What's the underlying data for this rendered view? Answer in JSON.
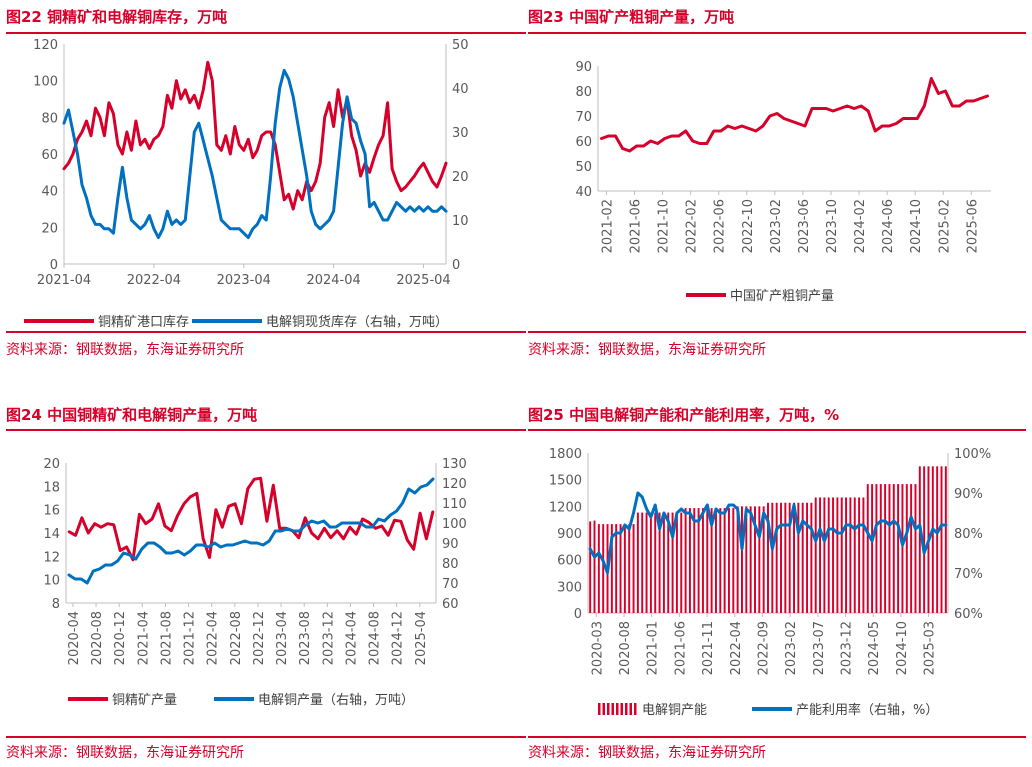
{
  "colors": {
    "red": "#d7002a",
    "blue": "#0070c0",
    "axis": "#bfbfbf",
    "text": "#595959"
  },
  "source_text": "资料来源：钢联数据，东海证券研究所",
  "chart_data": [
    {
      "id": "fig22",
      "type": "line",
      "title": "图22  铜精矿和电解铜库存，万吨",
      "x_ticks": [
        "2021-04",
        "2022-04",
        "2023-04",
        "2024-04",
        "2025-04"
      ],
      "y_left": {
        "min": 0,
        "max": 120,
        "ticks": [
          "0",
          "20",
          "40",
          "60",
          "80",
          "100",
          "120"
        ]
      },
      "y_right": {
        "min": 0,
        "max": 50,
        "ticks": [
          "0",
          "10",
          "20",
          "30",
          "40",
          "50"
        ]
      },
      "legend": [
        "铜精矿港口库存",
        "电解铜现货库存（右轴，万吨）"
      ],
      "series": [
        {
          "name": "铜精矿港口库存",
          "axis": "left",
          "color": "#d7002a",
          "x": [
            0,
            0.05,
            0.1,
            0.15,
            0.2,
            0.25,
            0.3,
            0.35,
            0.4,
            0.45,
            0.5,
            0.55,
            0.6,
            0.65,
            0.7,
            0.75,
            0.8,
            0.85,
            0.9,
            0.95,
            1.0,
            1.05,
            1.1,
            1.15,
            1.2,
            1.25,
            1.3,
            1.35,
            1.4,
            1.45,
            1.5,
            1.55,
            1.6,
            1.65,
            1.7,
            1.75,
            1.8,
            1.85,
            1.9,
            1.95,
            2.0,
            2.05,
            2.1,
            2.15,
            2.2,
            2.25,
            2.3,
            2.35,
            2.4,
            2.45,
            2.5,
            2.55,
            2.6,
            2.65,
            2.7,
            2.75,
            2.8,
            2.85,
            2.9,
            2.95,
            3.0,
            3.05,
            3.1,
            3.15,
            3.2,
            3.25,
            3.3,
            3.35,
            3.4,
            3.45,
            3.5,
            3.55,
            3.6,
            3.65,
            3.7,
            3.75,
            3.8,
            3.85,
            3.9,
            3.95,
            4.0,
            4.05,
            4.1,
            4.15,
            4.2,
            4.25
          ],
          "values": [
            52,
            55,
            60,
            68,
            72,
            78,
            70,
            85,
            80,
            70,
            88,
            82,
            65,
            60,
            72,
            62,
            78,
            65,
            68,
            63,
            68,
            70,
            75,
            92,
            85,
            100,
            90,
            95,
            88,
            92,
            85,
            95,
            110,
            100,
            65,
            62,
            70,
            60,
            75,
            65,
            62,
            68,
            58,
            62,
            70,
            72,
            72,
            65,
            50,
            35,
            38,
            30,
            40,
            35,
            45,
            40,
            45,
            55,
            80,
            88,
            75,
            95,
            80,
            90,
            70,
            62,
            48,
            55,
            50,
            58,
            65,
            70,
            88,
            52,
            45,
            40,
            42,
            45,
            48,
            52,
            55,
            50,
            45,
            42,
            48,
            55
          ]
        },
        {
          "name": "电解铜现货库存",
          "axis": "right",
          "color": "#0070c0",
          "x": [
            0,
            0.05,
            0.1,
            0.15,
            0.2,
            0.25,
            0.3,
            0.35,
            0.4,
            0.45,
            0.5,
            0.55,
            0.6,
            0.65,
            0.7,
            0.75,
            0.8,
            0.85,
            0.9,
            0.95,
            1.0,
            1.05,
            1.1,
            1.15,
            1.2,
            1.25,
            1.3,
            1.35,
            1.4,
            1.45,
            1.5,
            1.55,
            1.6,
            1.65,
            1.7,
            1.75,
            1.8,
            1.85,
            1.9,
            1.95,
            2.0,
            2.05,
            2.1,
            2.15,
            2.2,
            2.25,
            2.3,
            2.35,
            2.4,
            2.45,
            2.5,
            2.55,
            2.6,
            2.65,
            2.7,
            2.75,
            2.8,
            2.85,
            2.9,
            2.95,
            3.0,
            3.05,
            3.1,
            3.15,
            3.2,
            3.25,
            3.3,
            3.35,
            3.4,
            3.45,
            3.5,
            3.55,
            3.6,
            3.65,
            3.7,
            3.75,
            3.8,
            3.85,
            3.9,
            3.95,
            4.0,
            4.05,
            4.1,
            4.15,
            4.2,
            4.25
          ],
          "values": [
            32,
            35,
            30,
            25,
            18,
            15,
            11,
            9,
            9,
            8,
            8,
            7,
            15,
            22,
            15,
            10,
            9,
            8,
            9,
            11,
            8,
            6,
            8,
            12,
            9,
            10,
            9,
            10,
            20,
            30,
            32,
            28,
            24,
            20,
            15,
            10,
            9,
            8,
            8,
            8,
            7,
            6,
            8,
            9,
            11,
            10,
            20,
            32,
            40,
            44,
            42,
            38,
            32,
            26,
            20,
            12,
            9,
            8,
            9,
            10,
            12,
            22,
            32,
            38,
            33,
            32,
            28,
            25,
            13,
            14,
            12,
            10,
            10,
            12,
            14,
            13,
            12,
            13,
            12,
            13,
            12,
            13,
            12,
            12,
            13,
            12
          ]
        }
      ]
    },
    {
      "id": "fig23",
      "type": "line",
      "title": "图23  中国矿产粗铜产量，万吨",
      "x_ticks": [
        "2021-02",
        "2021-06",
        "2021-10",
        "2022-02",
        "2022-06",
        "2022-10",
        "2023-02",
        "2023-06",
        "2023-10",
        "2024-02",
        "2024-06",
        "2024-10",
        "2025-02",
        "2025-06"
      ],
      "y_left": {
        "min": 40,
        "max": 90,
        "ticks": [
          "40",
          "50",
          "60",
          "70",
          "80",
          "90"
        ]
      },
      "legend": [
        "中国矿产粗铜产量"
      ],
      "series": [
        {
          "name": "中国矿产粗铜产量",
          "axis": "left",
          "color": "#d7002a",
          "values": [
            61,
            62,
            62,
            57,
            56,
            58,
            58,
            60,
            59,
            61,
            62,
            62,
            64,
            60,
            59,
            59,
            64,
            64,
            66,
            65,
            66,
            65,
            64,
            66,
            70,
            71,
            69,
            68,
            67,
            66,
            73,
            73,
            73,
            72,
            73,
            74,
            73,
            74,
            72,
            64,
            66,
            66,
            67,
            69,
            69,
            69,
            74,
            85,
            79,
            80,
            74,
            74,
            76,
            76,
            77,
            78
          ]
        }
      ]
    },
    {
      "id": "fig24",
      "type": "line",
      "title": "图24  中国铜精矿和电解铜产量，万吨",
      "x_ticks": [
        "2020-04",
        "2020-08",
        "2020-12",
        "2021-04",
        "2021-08",
        "2021-12",
        "2022-04",
        "2022-08",
        "2022-12",
        "2023-04",
        "2023-08",
        "2023-12",
        "2024-04",
        "2024-08",
        "2024-12",
        "2025-04"
      ],
      "y_left": {
        "min": 8,
        "max": 20,
        "ticks": [
          "8",
          "10",
          "12",
          "14",
          "16",
          "18",
          "20"
        ]
      },
      "y_right": {
        "min": 60,
        "max": 130,
        "ticks": [
          "60",
          "70",
          "80",
          "90",
          "100",
          "110",
          "120",
          "130"
        ]
      },
      "legend": [
        "铜精矿产量",
        "电解铜产量（右轴，万吨）"
      ],
      "series": [
        {
          "name": "铜精矿产量",
          "axis": "left",
          "color": "#d7002a",
          "values": [
            14.1,
            13.8,
            15.3,
            14.0,
            14.8,
            14.5,
            14.8,
            14.7,
            12.5,
            12.8,
            11.7,
            15.6,
            14.8,
            15.2,
            16.5,
            14.6,
            14.2,
            15.5,
            16.5,
            17.1,
            17.4,
            13.5,
            11.9,
            16.0,
            14.5,
            16.3,
            16.5,
            14.8,
            17.8,
            18.6,
            18.7,
            15.0,
            18.1,
            14.4,
            14.4,
            14.2,
            13.6,
            15.3,
            14.0,
            13.5,
            14.4,
            13.6,
            14.2,
            13.5,
            14.5,
            13.9,
            15.2,
            14.9,
            14.4,
            14.6,
            13.8,
            15.1,
            15.0,
            13.4,
            12.6,
            15.7,
            13.5,
            15.8
          ]
        },
        {
          "name": "电解铜产量",
          "axis": "right",
          "color": "#0070c0",
          "values": [
            74,
            72,
            72,
            70,
            76,
            77,
            79,
            79,
            81,
            85,
            84,
            82,
            87,
            90,
            90,
            88,
            85,
            85,
            86,
            84,
            86,
            89,
            89,
            88,
            90,
            88,
            89,
            89,
            90,
            91,
            90,
            90,
            89,
            91,
            96,
            96,
            97,
            96,
            96,
            99,
            101,
            100,
            101,
            98,
            98,
            100,
            100,
            100,
            100,
            98,
            98,
            102,
            101,
            104,
            106,
            110,
            117,
            115,
            118,
            119,
            122
          ]
        }
      ]
    },
    {
      "id": "fig25",
      "type": "bar",
      "title": "图25  中国电解铜产能和产能利用率，万吨，%",
      "x_ticks": [
        "2020-03",
        "2020-08",
        "2021-01",
        "2021-06",
        "2021-11",
        "2022-04",
        "2022-09",
        "2023-02",
        "2023-07",
        "2023-12",
        "2024-05",
        "2024-10",
        "2025-03"
      ],
      "y_left": {
        "min": 0,
        "max": 1800,
        "ticks": [
          "0",
          "300",
          "600",
          "900",
          "1200",
          "1500",
          "1800"
        ]
      },
      "y_right": {
        "min": 60,
        "max": 100,
        "ticks": [
          "60%",
          "70%",
          "80%",
          "90%",
          "100%"
        ]
      },
      "legend": [
        "电解铜产能",
        "产能利用率（右轴，%）"
      ],
      "series": [
        {
          "name": "电解铜产能",
          "axis": "left",
          "color": "#d7002a",
          "values": [
            1030,
            1040,
            1000,
            1000,
            1000,
            1000,
            1000,
            1000,
            1000,
            1000,
            1000,
            1130,
            1130,
            1130,
            1130,
            1130,
            1130,
            1130,
            1130,
            1130,
            1130,
            1130,
            1180,
            1180,
            1180,
            1180,
            1180,
            1180,
            1180,
            1180,
            1180,
            1180,
            1180,
            1180,
            1200,
            1200,
            1200,
            1200,
            1200,
            1200,
            1200,
            1240,
            1240,
            1240,
            1240,
            1240,
            1240,
            1240,
            1240,
            1240,
            1240,
            1240,
            1300,
            1300,
            1300,
            1300,
            1300,
            1300,
            1300,
            1300,
            1300,
            1300,
            1300,
            1300,
            1450,
            1450,
            1450,
            1450,
            1450,
            1450,
            1450,
            1450,
            1450,
            1450,
            1450,
            1450,
            1650,
            1650,
            1650,
            1650,
            1650,
            1650,
            1650
          ]
        },
        {
          "name": "产能利用率",
          "axis": "right",
          "color": "#0070c0",
          "values": [
            76,
            74,
            75,
            73,
            70,
            79,
            80,
            80,
            82,
            81,
            85,
            90,
            89,
            86,
            84,
            87,
            81,
            85,
            83,
            79,
            85,
            86,
            85,
            85,
            83,
            83,
            85,
            87,
            82,
            86,
            85,
            85,
            87,
            87,
            86,
            76,
            86,
            85,
            82,
            79,
            85,
            83,
            76,
            81,
            82,
            82,
            82,
            87,
            80,
            83,
            82,
            81,
            78,
            81,
            78,
            81,
            81,
            80,
            80,
            82,
            82,
            81,
            82,
            82,
            80,
            78,
            82,
            83,
            83,
            82,
            83,
            82,
            77,
            80,
            84,
            81,
            82,
            75,
            78,
            81,
            80,
            82,
            82
          ]
        }
      ]
    }
  ]
}
